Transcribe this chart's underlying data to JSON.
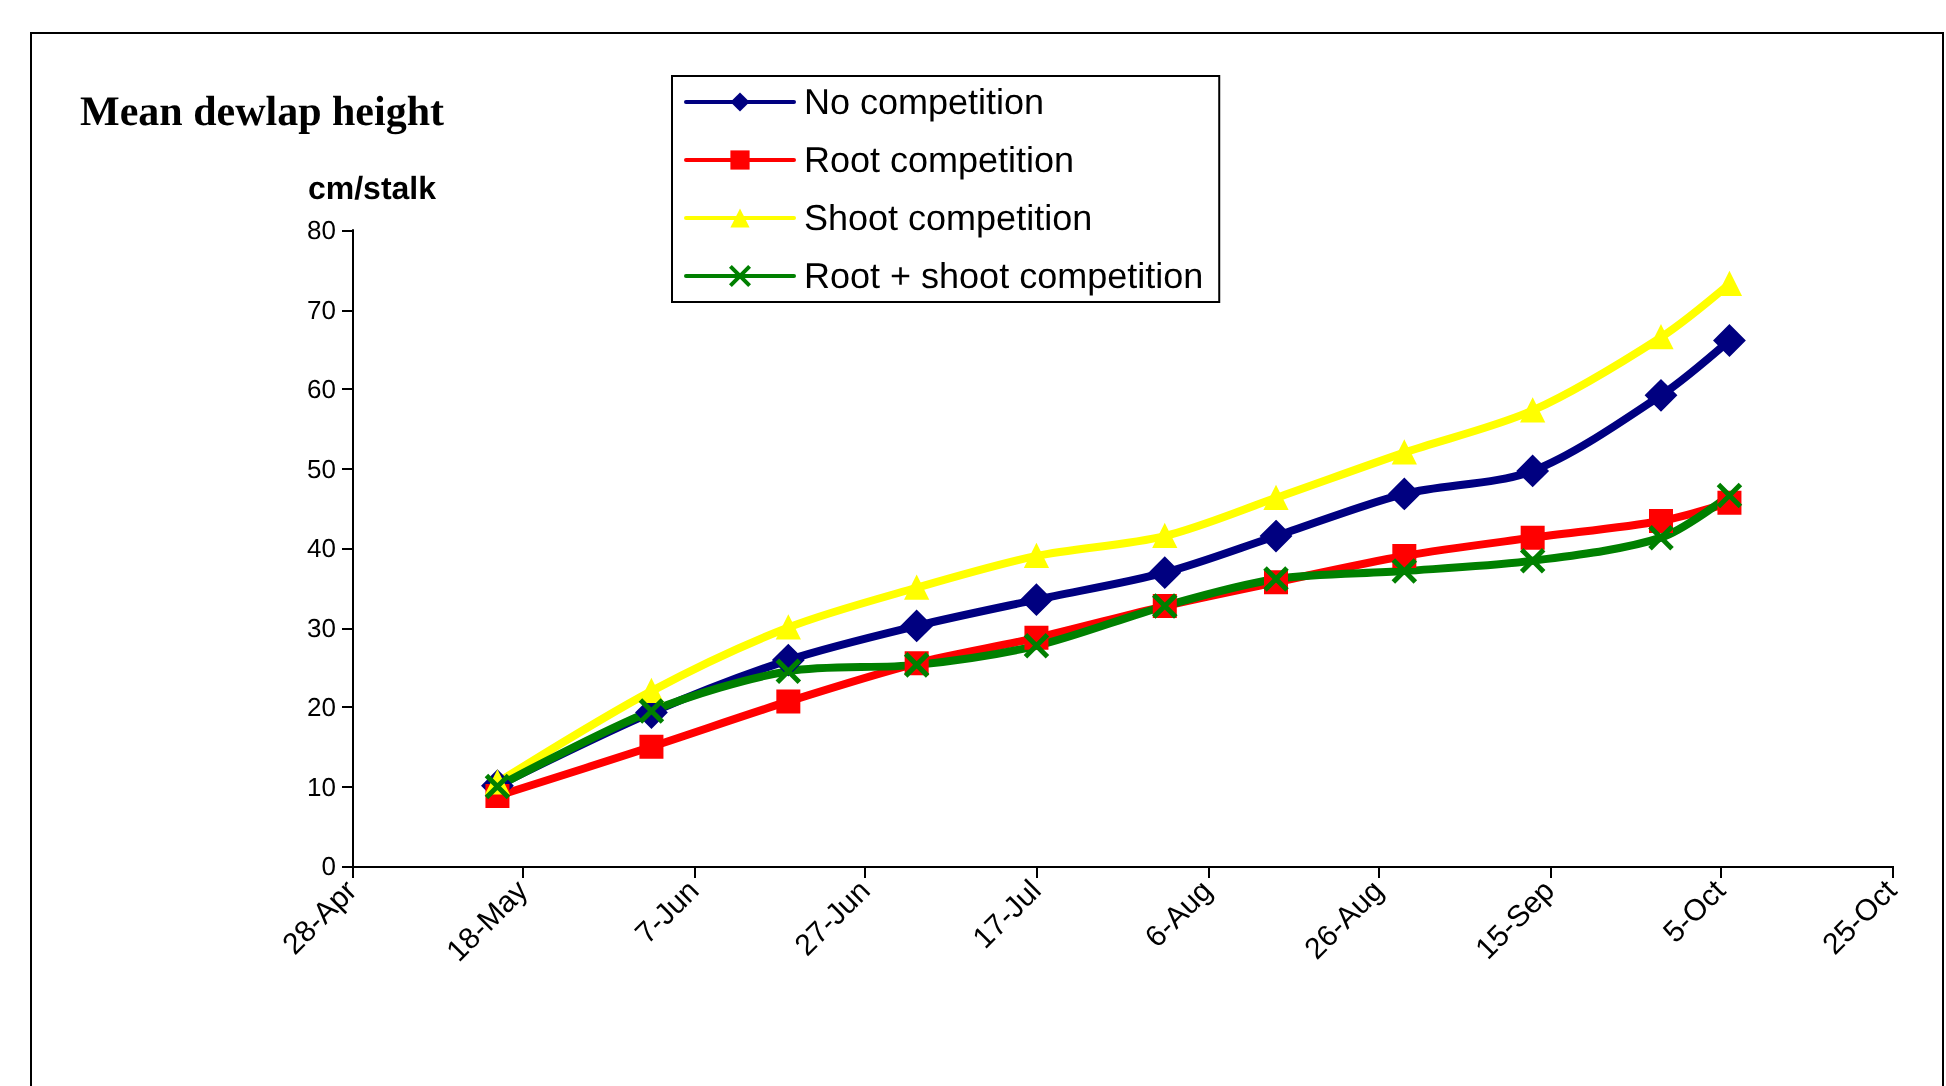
{
  "chart_data": {
    "type": "line",
    "title": "Mean dewlap height",
    "ylabel": "cm/stalk",
    "x": [
      "--05-15",
      "--06-02",
      "--06-18",
      "--07-03",
      "--07-17",
      "--08-01",
      "--08-14",
      "--08-29",
      "--09-13",
      "--09-28",
      "--10-06"
    ],
    "series": [
      {
        "name": "No competition",
        "color": "#000080",
        "marker": "diamond",
        "values": [
          10.1,
          19.3,
          25.9,
          30.2,
          33.5,
          36.9,
          41.5,
          46.8,
          49.7,
          59.2,
          66.1
        ]
      },
      {
        "name": "Root competition",
        "color": "#ff0000",
        "marker": "square",
        "values": [
          8.8,
          15.0,
          20.7,
          25.5,
          28.7,
          32.7,
          35.7,
          39.0,
          41.3,
          43.4,
          45.7
        ]
      },
      {
        "name": "Shoot competition",
        "color": "#ffff00",
        "marker": "triangle",
        "values": [
          10.5,
          22.0,
          30.0,
          35.0,
          39.0,
          41.5,
          46.3,
          52.0,
          57.3,
          66.5,
          73.2
        ]
      },
      {
        "name": "Root + shoot competition",
        "color": "#008000",
        "marker": "cross",
        "values": [
          10.0,
          19.5,
          24.5,
          25.3,
          27.7,
          32.7,
          36.1,
          37.1,
          38.4,
          41.3,
          46.6
        ]
      }
    ],
    "xlim": [
      "--04-28",
      "--10-25"
    ],
    "xticks": [
      {
        "value": "--04-28",
        "label": "28-Apr"
      },
      {
        "value": "--05-18",
        "label": "18-May"
      },
      {
        "value": "--06-07",
        "label": "7-Jun"
      },
      {
        "value": "--06-27",
        "label": "27-Jun"
      },
      {
        "value": "--07-17",
        "label": "17-Jul"
      },
      {
        "value": "--08-06",
        "label": "6-Aug"
      },
      {
        "value": "--08-26",
        "label": "26-Aug"
      },
      {
        "value": "--09-15",
        "label": "15-Sep"
      },
      {
        "value": "--10-05",
        "label": "5-Oct"
      },
      {
        "value": "--10-25",
        "label": "25-Oct"
      }
    ],
    "ylim": [
      0,
      80
    ],
    "yticks": [
      0,
      10,
      20,
      30,
      40,
      50,
      60,
      70,
      80
    ],
    "grid": false,
    "legend": "top",
    "line_style": "solid"
  }
}
